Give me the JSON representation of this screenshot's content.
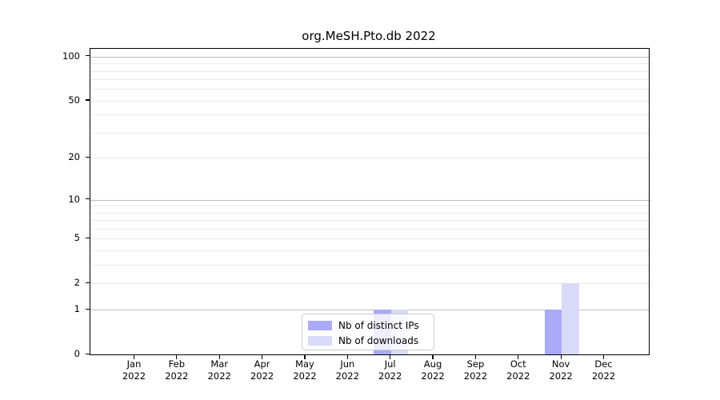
{
  "title": "org.MeSH.Pto.db 2022",
  "colors": {
    "distinct_ips_bar": "#aaaaf8",
    "downloads_bar": "#d9d9f8",
    "grid_major": "#bdbdbd",
    "grid_minor": "#e9e9e9",
    "axis": "#000000",
    "legend_border": "#cccccc"
  },
  "legend": {
    "items": [
      {
        "label": "Nb of distinct IPs"
      },
      {
        "label": "Nb of downloads"
      }
    ]
  },
  "chart_data": {
    "type": "bar",
    "title": "org.MeSH.Pto.db 2022",
    "categories": [
      {
        "month": "Jan",
        "year": "2022"
      },
      {
        "month": "Feb",
        "year": "2022"
      },
      {
        "month": "Mar",
        "year": "2022"
      },
      {
        "month": "Apr",
        "year": "2022"
      },
      {
        "month": "May",
        "year": "2022"
      },
      {
        "month": "Jun",
        "year": "2022"
      },
      {
        "month": "Jul",
        "year": "2022"
      },
      {
        "month": "Aug",
        "year": "2022"
      },
      {
        "month": "Sep",
        "year": "2022"
      },
      {
        "month": "Oct",
        "year": "2022"
      },
      {
        "month": "Nov",
        "year": "2022"
      },
      {
        "month": "Dec",
        "year": "2022"
      }
    ],
    "series": [
      {
        "name": "Nb of distinct IPs",
        "color": "#aaaaf8",
        "values": [
          0,
          0,
          0,
          0,
          0,
          0,
          1,
          0,
          0,
          0,
          1,
          0
        ]
      },
      {
        "name": "Nb of downloads",
        "color": "#d9d9f8",
        "values": [
          0,
          0,
          0,
          0,
          0,
          0,
          1,
          0,
          0,
          0,
          2,
          0
        ]
      }
    ],
    "xlabel": "",
    "ylabel": "",
    "yscale": "log1p",
    "yticks": [
      100,
      50,
      20,
      10,
      5,
      2,
      1,
      0
    ],
    "ylim": [
      0,
      113
    ],
    "grid": "both",
    "legend_position": "bottom-center"
  }
}
